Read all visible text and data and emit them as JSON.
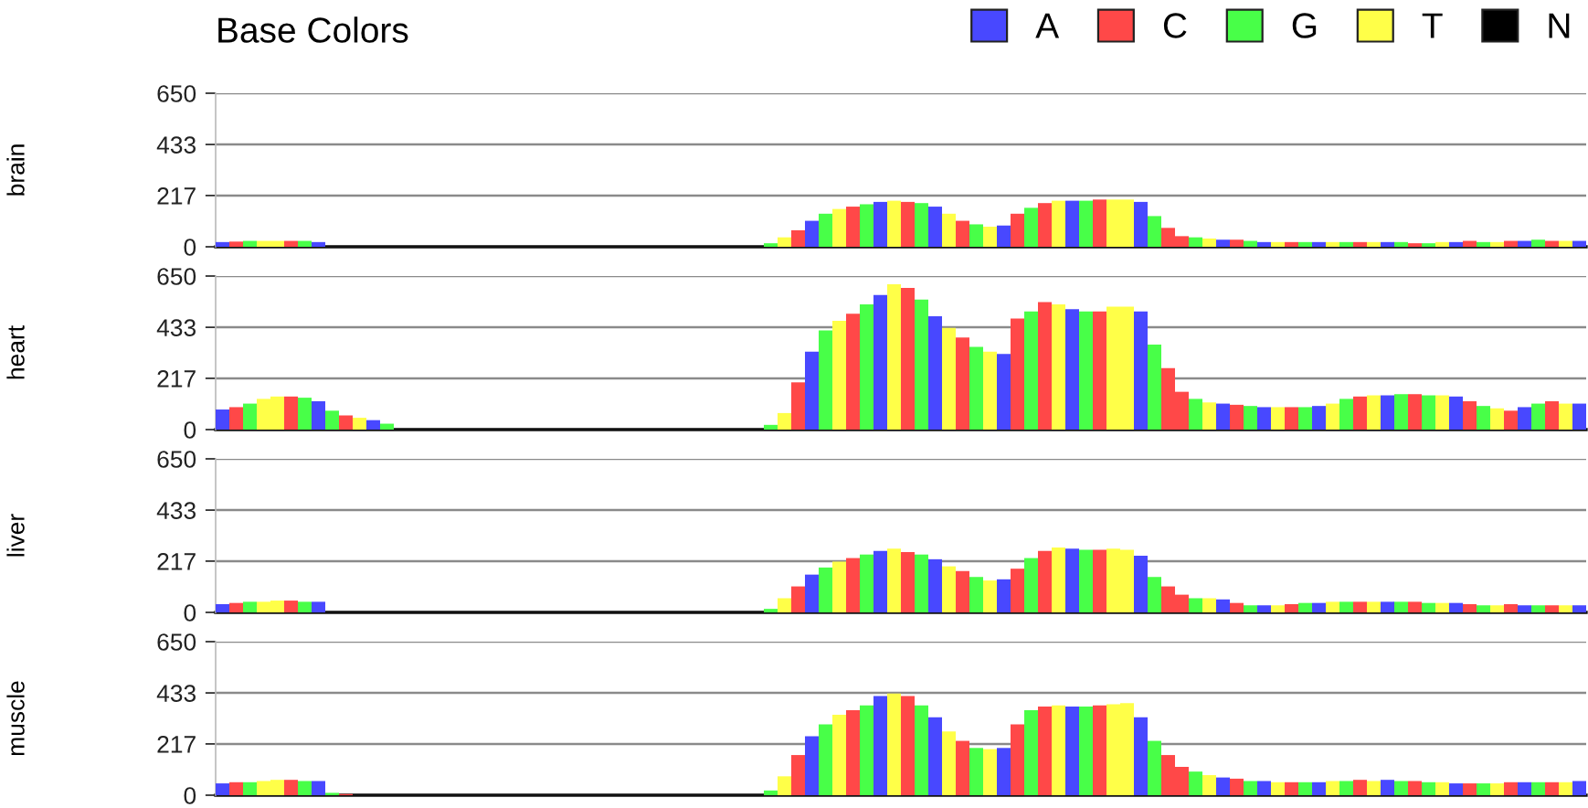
{
  "chart_data": [
    {
      "type": "bar",
      "title": "Base Colors",
      "ylabel": "brain",
      "categories": [
        null,
        null,
        null,
        null,
        null,
        null,
        null,
        null,
        null,
        null,
        null,
        null,
        null,
        null,
        null,
        null,
        null,
        null,
        null,
        null,
        null,
        null,
        null,
        null,
        null,
        null,
        null,
        null,
        null,
        null,
        null,
        null,
        null,
        null,
        null,
        null,
        null,
        null,
        null,
        null,
        null,
        null,
        null,
        null,
        null,
        null,
        null,
        null,
        null,
        null,
        null,
        null,
        null,
        null,
        null,
        null,
        null,
        null,
        null,
        null,
        null,
        null,
        null,
        null,
        null,
        null,
        null,
        null,
        null,
        null,
        null,
        null,
        null,
        null,
        null,
        null,
        null,
        null,
        null,
        null,
        null,
        null,
        null,
        null,
        null,
        null,
        null,
        null,
        null,
        null,
        null,
        null,
        null,
        null,
        null,
        null,
        null,
        null,
        null,
        null
      ],
      "ylim": [
        0,
        650
      ],
      "yticks": [
        0,
        217,
        433,
        650
      ],
      "grid": "y",
      "tick_labels": "y",
      "legend": "top right",
      "series": [
        {
          "name": "A",
          "color": "#4848ff",
          "values": [
            20,
            null,
            null,
            null,
            null,
            null,
            null,
            20,
            null,
            null,
            null,
            null,
            null,
            null,
            null,
            null,
            null,
            null,
            null,
            null,
            null,
            null,
            null,
            null,
            null,
            null,
            null,
            null,
            null,
            null,
            null,
            null,
            null,
            null,
            null,
            null,
            null,
            null,
            null,
            null,
            null,
            null,
            null,
            110,
            null,
            null,
            null,
            null,
            190,
            null,
            null,
            null,
            170,
            null,
            null,
            null,
            null,
            90,
            null,
            null,
            null,
            null,
            195,
            null,
            null,
            null,
            null,
            190,
            null,
            null,
            null,
            null,
            null,
            30,
            null,
            null,
            20,
            null,
            null,
            null,
            20,
            null,
            null,
            null,
            null,
            20,
            null,
            null,
            null,
            null,
            20,
            null,
            null,
            null,
            null,
            25,
            null,
            null,
            null,
            25
          ]
        },
        {
          "name": "C",
          "color": "#ff4848",
          "values": [
            null,
            22,
            null,
            null,
            null,
            25,
            null,
            null,
            null,
            null,
            null,
            null,
            null,
            null,
            null,
            null,
            null,
            null,
            null,
            null,
            null,
            null,
            null,
            null,
            null,
            null,
            null,
            null,
            null,
            null,
            null,
            null,
            null,
            null,
            null,
            null,
            null,
            null,
            null,
            null,
            null,
            null,
            70,
            null,
            null,
            null,
            170,
            null,
            null,
            null,
            190,
            null,
            null,
            null,
            110,
            null,
            null,
            null,
            140,
            null,
            185,
            null,
            null,
            null,
            200,
            null,
            null,
            null,
            null,
            80,
            45,
            null,
            null,
            null,
            30,
            null,
            null,
            null,
            20,
            null,
            null,
            null,
            null,
            20,
            null,
            null,
            null,
            15,
            null,
            null,
            null,
            25,
            null,
            null,
            25,
            null,
            null,
            25,
            null,
            null
          ]
        },
        {
          "name": "G",
          "color": "#48ff48",
          "values": [
            null,
            null,
            25,
            null,
            null,
            null,
            25,
            null,
            null,
            null,
            null,
            null,
            null,
            null,
            null,
            null,
            null,
            null,
            null,
            null,
            null,
            null,
            null,
            null,
            null,
            null,
            null,
            null,
            null,
            null,
            null,
            null,
            null,
            null,
            null,
            null,
            null,
            null,
            null,
            null,
            15,
            null,
            null,
            null,
            140,
            null,
            null,
            180,
            null,
            null,
            null,
            185,
            null,
            null,
            null,
            95,
            null,
            null,
            null,
            165,
            null,
            null,
            null,
            195,
            null,
            null,
            null,
            null,
            130,
            null,
            null,
            40,
            null,
            null,
            null,
            25,
            null,
            null,
            null,
            20,
            null,
            null,
            20,
            null,
            null,
            null,
            20,
            null,
            15,
            null,
            null,
            null,
            20,
            null,
            null,
            null,
            30,
            null,
            null,
            null
          ]
        },
        {
          "name": "T",
          "color": "#ffff48",
          "values": [
            null,
            null,
            null,
            25,
            25,
            null,
            null,
            null,
            null,
            null,
            null,
            null,
            null,
            null,
            null,
            null,
            null,
            null,
            null,
            null,
            null,
            null,
            null,
            null,
            null,
            null,
            null,
            null,
            null,
            null,
            null,
            null,
            null,
            null,
            null,
            null,
            null,
            null,
            null,
            null,
            null,
            40,
            null,
            null,
            null,
            160,
            null,
            null,
            null,
            195,
            null,
            null,
            null,
            140,
            null,
            null,
            85,
            null,
            null,
            null,
            null,
            195,
            null,
            null,
            null,
            200,
            200,
            null,
            null,
            null,
            null,
            null,
            35,
            null,
            null,
            null,
            null,
            20,
            null,
            null,
            null,
            20,
            null,
            null,
            20,
            null,
            null,
            null,
            null,
            20,
            null,
            null,
            null,
            20,
            null,
            null,
            null,
            null,
            25,
            null
          ]
        },
        {
          "name": "N",
          "color": "#000000",
          "values": [
            null,
            null,
            null,
            null,
            null,
            null,
            null,
            null,
            null,
            null,
            null,
            null,
            null,
            null,
            null,
            null,
            null,
            null,
            null,
            null,
            null,
            null,
            null,
            null,
            null,
            null,
            null,
            null,
            null,
            null,
            null,
            null,
            null,
            null,
            null,
            null,
            null,
            null,
            null,
            null,
            null,
            null,
            null,
            null,
            null,
            null,
            null,
            null,
            null,
            null,
            null,
            null,
            null,
            null,
            null,
            null,
            null,
            null,
            null,
            null,
            null,
            null,
            null,
            null,
            null,
            null,
            null,
            null,
            null,
            null,
            null,
            null,
            null,
            null,
            null,
            null,
            null,
            null,
            null,
            null,
            null,
            null,
            null,
            null,
            null,
            null,
            null,
            null,
            null,
            null,
            null,
            null,
            null,
            null,
            null,
            null,
            null,
            null,
            null,
            null
          ]
        }
      ]
    },
    {
      "type": "bar",
      "ylabel": "heart",
      "categories": [
        null,
        null,
        null,
        null,
        null,
        null,
        null,
        null,
        null,
        null,
        null,
        null,
        null,
        null,
        null,
        null,
        null,
        null,
        null,
        null,
        null,
        null,
        null,
        null,
        null,
        null,
        null,
        null,
        null,
        null,
        null,
        null,
        null,
        null,
        null,
        null,
        null,
        null,
        null,
        null,
        null,
        null,
        null,
        null,
        null,
        null,
        null,
        null,
        null,
        null,
        null,
        null,
        null,
        null,
        null,
        null,
        null,
        null,
        null,
        null,
        null,
        null,
        null,
        null,
        null,
        null,
        null,
        null,
        null,
        null,
        null,
        null,
        null,
        null,
        null,
        null,
        null,
        null,
        null,
        null,
        null,
        null,
        null,
        null,
        null,
        null,
        null,
        null,
        null,
        null,
        null,
        null,
        null,
        null,
        null,
        null,
        null,
        null,
        null,
        null
      ],
      "ylim": [
        0,
        650
      ],
      "yticks": [
        0,
        217,
        433,
        650
      ],
      "grid": "y",
      "tick_labels": "y",
      "series": [
        {
          "color": "#4848ff",
          "values": [
            85,
            null,
            null,
            null,
            null,
            null,
            null,
            120,
            null,
            null,
            null,
            40,
            null,
            null,
            null,
            null,
            null,
            null,
            null,
            null,
            null,
            null,
            null,
            null,
            null,
            null,
            null,
            null,
            null,
            null,
            null,
            null,
            null,
            null,
            null,
            null,
            null,
            null,
            null,
            null,
            null,
            null,
            null,
            330,
            null,
            null,
            null,
            null,
            570,
            null,
            null,
            null,
            480,
            null,
            null,
            null,
            null,
            320,
            null,
            null,
            null,
            null,
            510,
            null,
            null,
            null,
            null,
            500,
            null,
            null,
            null,
            null,
            null,
            110,
            null,
            null,
            95,
            null,
            null,
            null,
            100,
            null,
            null,
            null,
            null,
            145,
            null,
            null,
            null,
            null,
            140,
            null,
            null,
            null,
            null,
            95,
            null,
            null,
            null,
            110
          ]
        },
        {
          "color": "#ff4848",
          "values": [
            null,
            95,
            null,
            null,
            null,
            140,
            null,
            null,
            null,
            60,
            null,
            null,
            null,
            null,
            null,
            null,
            null,
            null,
            null,
            null,
            null,
            null,
            null,
            null,
            null,
            null,
            null,
            null,
            null,
            null,
            null,
            null,
            null,
            null,
            null,
            null,
            null,
            null,
            null,
            null,
            null,
            null,
            200,
            null,
            null,
            null,
            490,
            null,
            null,
            null,
            600,
            null,
            null,
            null,
            390,
            null,
            null,
            null,
            470,
            null,
            540,
            null,
            null,
            null,
            500,
            null,
            null,
            null,
            null,
            260,
            160,
            null,
            null,
            null,
            105,
            null,
            null,
            null,
            95,
            null,
            null,
            null,
            null,
            140,
            null,
            null,
            null,
            150,
            null,
            null,
            null,
            120,
            null,
            null,
            80,
            null,
            null,
            120,
            null,
            null
          ]
        },
        {
          "color": "#48ff48",
          "values": [
            null,
            null,
            110,
            null,
            null,
            null,
            135,
            null,
            80,
            null,
            null,
            null,
            25,
            null,
            null,
            null,
            null,
            null,
            null,
            null,
            null,
            null,
            null,
            null,
            null,
            null,
            null,
            null,
            null,
            null,
            null,
            null,
            null,
            null,
            null,
            null,
            null,
            null,
            null,
            null,
            20,
            null,
            null,
            null,
            420,
            null,
            null,
            530,
            null,
            null,
            null,
            550,
            null,
            null,
            null,
            350,
            null,
            null,
            null,
            500,
            null,
            null,
            null,
            500,
            null,
            null,
            null,
            null,
            360,
            null,
            null,
            130,
            null,
            null,
            null,
            100,
            null,
            null,
            null,
            95,
            null,
            null,
            130,
            null,
            null,
            null,
            150,
            null,
            145,
            null,
            null,
            null,
            100,
            null,
            null,
            null,
            110,
            null,
            null,
            null
          ]
        },
        {
          "color": "#ffff48",
          "values": [
            null,
            null,
            null,
            130,
            140,
            null,
            null,
            null,
            null,
            null,
            50,
            null,
            null,
            null,
            null,
            null,
            null,
            null,
            null,
            null,
            null,
            null,
            null,
            null,
            null,
            null,
            null,
            null,
            null,
            null,
            null,
            null,
            null,
            null,
            null,
            null,
            null,
            null,
            null,
            null,
            null,
            70,
            null,
            null,
            null,
            460,
            null,
            null,
            null,
            615,
            null,
            null,
            null,
            430,
            null,
            null,
            330,
            null,
            null,
            null,
            null,
            530,
            null,
            null,
            null,
            520,
            520,
            null,
            null,
            null,
            null,
            null,
            115,
            null,
            null,
            null,
            null,
            95,
            null,
            null,
            null,
            110,
            null,
            null,
            145,
            null,
            null,
            null,
            null,
            145,
            null,
            null,
            null,
            90,
            null,
            null,
            null,
            null,
            110,
            null
          ]
        }
      ]
    },
    {
      "type": "bar",
      "ylabel": "liver",
      "categories": [
        null,
        null,
        null,
        null,
        null,
        null,
        null,
        null,
        null,
        null,
        null,
        null,
        null,
        null,
        null,
        null,
        null,
        null,
        null,
        null,
        null,
        null,
        null,
        null,
        null,
        null,
        null,
        null,
        null,
        null,
        null,
        null,
        null,
        null,
        null,
        null,
        null,
        null,
        null,
        null,
        null,
        null,
        null,
        null,
        null,
        null,
        null,
        null,
        null,
        null,
        null,
        null,
        null,
        null,
        null,
        null,
        null,
        null,
        null,
        null,
        null,
        null,
        null,
        null,
        null,
        null,
        null,
        null,
        null,
        null,
        null,
        null,
        null,
        null,
        null,
        null,
        null,
        null,
        null,
        null,
        null,
        null,
        null,
        null,
        null,
        null,
        null,
        null,
        null,
        null,
        null,
        null,
        null,
        null,
        null,
        null,
        null,
        null,
        null,
        null
      ],
      "ylim": [
        0,
        650
      ],
      "yticks": [
        0,
        217,
        433,
        650
      ],
      "grid": "y",
      "tick_labels": "y",
      "series": [
        {
          "color": "#4848ff",
          "values": [
            35,
            null,
            null,
            null,
            null,
            null,
            null,
            45,
            null,
            null,
            null,
            null,
            null,
            null,
            null,
            null,
            null,
            null,
            null,
            null,
            null,
            null,
            null,
            null,
            null,
            null,
            null,
            null,
            null,
            null,
            null,
            null,
            null,
            null,
            null,
            null,
            null,
            null,
            null,
            null,
            null,
            null,
            null,
            160,
            null,
            null,
            null,
            null,
            260,
            null,
            null,
            null,
            225,
            null,
            null,
            null,
            null,
            140,
            null,
            null,
            null,
            null,
            270,
            null,
            null,
            null,
            null,
            240,
            null,
            null,
            null,
            null,
            null,
            55,
            null,
            null,
            30,
            null,
            null,
            null,
            40,
            null,
            null,
            null,
            null,
            45,
            null,
            null,
            null,
            null,
            40,
            null,
            null,
            null,
            null,
            30,
            null,
            null,
            null,
            30
          ]
        },
        {
          "color": "#ff4848",
          "values": [
            null,
            40,
            null,
            null,
            null,
            50,
            null,
            null,
            null,
            null,
            null,
            null,
            null,
            null,
            null,
            null,
            null,
            null,
            null,
            null,
            null,
            null,
            null,
            null,
            null,
            null,
            null,
            null,
            null,
            null,
            null,
            null,
            null,
            null,
            null,
            null,
            null,
            null,
            null,
            null,
            null,
            null,
            110,
            null,
            null,
            null,
            230,
            null,
            null,
            null,
            255,
            null,
            null,
            null,
            175,
            null,
            null,
            null,
            185,
            null,
            260,
            null,
            null,
            null,
            265,
            null,
            null,
            null,
            null,
            110,
            75,
            null,
            null,
            null,
            40,
            null,
            null,
            null,
            35,
            null,
            null,
            null,
            null,
            45,
            null,
            null,
            null,
            45,
            null,
            null,
            null,
            35,
            null,
            null,
            35,
            null,
            null,
            30,
            null,
            null
          ]
        },
        {
          "color": "#48ff48",
          "values": [
            null,
            null,
            45,
            null,
            null,
            null,
            45,
            null,
            null,
            null,
            null,
            null,
            null,
            null,
            null,
            null,
            null,
            null,
            null,
            null,
            null,
            null,
            null,
            null,
            null,
            null,
            null,
            null,
            null,
            null,
            null,
            null,
            null,
            null,
            null,
            null,
            null,
            null,
            null,
            null,
            15,
            null,
            null,
            null,
            190,
            null,
            null,
            245,
            null,
            null,
            null,
            245,
            null,
            null,
            null,
            150,
            null,
            null,
            null,
            230,
            null,
            null,
            null,
            265,
            null,
            null,
            null,
            null,
            150,
            null,
            null,
            60,
            null,
            null,
            null,
            30,
            null,
            null,
            null,
            40,
            null,
            null,
            45,
            null,
            null,
            null,
            45,
            null,
            40,
            null,
            null,
            null,
            30,
            null,
            null,
            null,
            30,
            null,
            null,
            null
          ]
        },
        {
          "color": "#ffff48",
          "values": [
            null,
            null,
            null,
            45,
            50,
            null,
            null,
            null,
            null,
            null,
            null,
            null,
            null,
            null,
            null,
            null,
            null,
            null,
            null,
            null,
            null,
            null,
            null,
            null,
            null,
            null,
            null,
            null,
            null,
            null,
            null,
            null,
            null,
            null,
            null,
            null,
            null,
            null,
            null,
            null,
            null,
            60,
            null,
            null,
            null,
            215,
            null,
            null,
            null,
            270,
            null,
            null,
            null,
            195,
            null,
            null,
            135,
            null,
            null,
            null,
            null,
            275,
            null,
            null,
            null,
            270,
            265,
            null,
            null,
            null,
            null,
            null,
            60,
            null,
            null,
            null,
            null,
            30,
            null,
            null,
            null,
            45,
            null,
            null,
            45,
            null,
            null,
            null,
            null,
            40,
            null,
            null,
            null,
            30,
            null,
            null,
            null,
            null,
            30,
            null
          ]
        }
      ]
    },
    {
      "type": "bar",
      "ylabel": "muscle",
      "categories": [
        null,
        null,
        null,
        null,
        null,
        null,
        null,
        null,
        null,
        null,
        null,
        null,
        null,
        null,
        null,
        null,
        null,
        null,
        null,
        null,
        null,
        null,
        null,
        null,
        null,
        null,
        null,
        null,
        null,
        null,
        null,
        null,
        null,
        null,
        null,
        null,
        null,
        null,
        null,
        null,
        null,
        null,
        null,
        null,
        null,
        null,
        null,
        null,
        null,
        null,
        null,
        null,
        null,
        null,
        null,
        null,
        null,
        null,
        null,
        null,
        null,
        null,
        null,
        null,
        null,
        null,
        null,
        null,
        null,
        null,
        null,
        null,
        null,
        null,
        null,
        null,
        null,
        null,
        null,
        null,
        null,
        null,
        null,
        null,
        null,
        null,
        null,
        null,
        null,
        null,
        null,
        null,
        null,
        null,
        null,
        null,
        null,
        null,
        null,
        null
      ],
      "ylim": [
        0,
        650
      ],
      "yticks": [
        0,
        217,
        433,
        650
      ],
      "grid": "y",
      "tick_labels": "y",
      "series": [
        {
          "color": "#4848ff",
          "values": [
            50,
            null,
            null,
            null,
            null,
            null,
            null,
            60,
            null,
            null,
            null,
            null,
            null,
            null,
            null,
            null,
            null,
            null,
            null,
            null,
            null,
            null,
            null,
            null,
            null,
            null,
            null,
            null,
            null,
            null,
            null,
            null,
            null,
            null,
            null,
            null,
            null,
            null,
            null,
            null,
            null,
            null,
            null,
            250,
            null,
            null,
            null,
            null,
            420,
            null,
            null,
            null,
            330,
            null,
            null,
            null,
            null,
            200,
            null,
            null,
            null,
            null,
            375,
            null,
            null,
            null,
            null,
            330,
            null,
            null,
            null,
            null,
            null,
            75,
            null,
            null,
            60,
            null,
            null,
            null,
            55,
            null,
            null,
            null,
            null,
            65,
            null,
            null,
            null,
            null,
            50,
            null,
            null,
            null,
            null,
            55,
            null,
            null,
            null,
            60
          ]
        },
        {
          "color": "#ff4848",
          "values": [
            null,
            55,
            null,
            null,
            null,
            65,
            null,
            null,
            null,
            5,
            null,
            null,
            null,
            null,
            null,
            null,
            null,
            null,
            null,
            null,
            null,
            null,
            null,
            null,
            null,
            null,
            null,
            null,
            null,
            null,
            null,
            null,
            null,
            null,
            null,
            null,
            null,
            null,
            null,
            null,
            null,
            null,
            170,
            null,
            null,
            null,
            360,
            null,
            null,
            null,
            420,
            null,
            null,
            null,
            230,
            null,
            null,
            null,
            300,
            null,
            375,
            null,
            null,
            null,
            380,
            null,
            null,
            null,
            null,
            170,
            120,
            null,
            null,
            null,
            70,
            null,
            null,
            null,
            55,
            null,
            null,
            null,
            null,
            65,
            null,
            null,
            null,
            60,
            null,
            null,
            null,
            50,
            null,
            null,
            55,
            null,
            null,
            55,
            null,
            null
          ]
        },
        {
          "color": "#48ff48",
          "values": [
            null,
            null,
            55,
            null,
            null,
            null,
            60,
            null,
            10,
            null,
            null,
            null,
            null,
            null,
            null,
            null,
            null,
            null,
            null,
            null,
            null,
            null,
            null,
            null,
            null,
            null,
            null,
            null,
            null,
            null,
            null,
            null,
            null,
            null,
            null,
            null,
            null,
            null,
            null,
            null,
            20,
            null,
            null,
            null,
            300,
            null,
            null,
            380,
            null,
            null,
            null,
            380,
            null,
            null,
            null,
            200,
            null,
            null,
            null,
            360,
            null,
            null,
            null,
            375,
            null,
            null,
            null,
            null,
            230,
            null,
            null,
            100,
            null,
            null,
            null,
            60,
            null,
            null,
            null,
            55,
            null,
            null,
            60,
            null,
            null,
            null,
            60,
            null,
            55,
            null,
            null,
            null,
            50,
            null,
            null,
            null,
            55,
            null,
            null,
            null
          ]
        },
        {
          "color": "#ffff48",
          "values": [
            null,
            null,
            null,
            60,
            65,
            null,
            null,
            null,
            null,
            null,
            null,
            null,
            null,
            null,
            null,
            null,
            null,
            null,
            null,
            null,
            null,
            null,
            null,
            null,
            null,
            null,
            null,
            null,
            null,
            null,
            null,
            null,
            null,
            null,
            null,
            null,
            null,
            null,
            null,
            null,
            null,
            80,
            null,
            null,
            null,
            340,
            null,
            null,
            null,
            430,
            null,
            null,
            null,
            270,
            null,
            null,
            195,
            null,
            null,
            null,
            null,
            380,
            null,
            null,
            null,
            385,
            390,
            null,
            null,
            null,
            null,
            null,
            85,
            null,
            null,
            null,
            null,
            55,
            null,
            null,
            null,
            60,
            null,
            null,
            60,
            null,
            null,
            null,
            null,
            55,
            null,
            null,
            null,
            50,
            null,
            null,
            null,
            null,
            55,
            null
          ]
        }
      ]
    }
  ]
}
